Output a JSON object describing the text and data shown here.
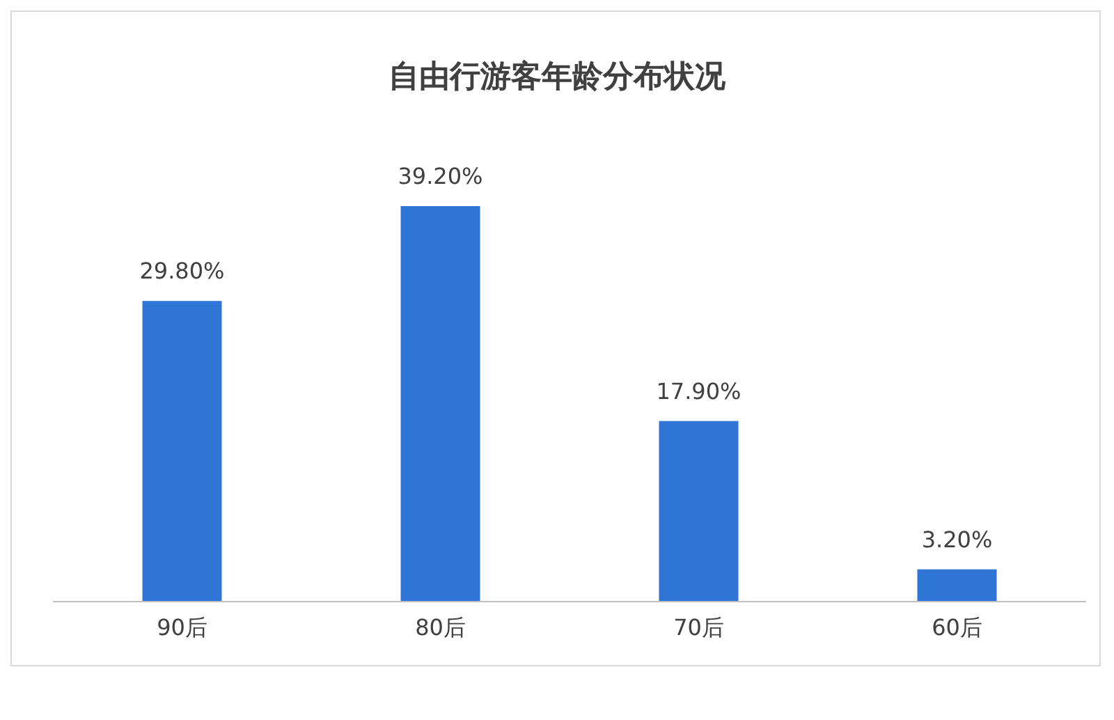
{
  "chart_data": {
    "type": "bar",
    "title": "自由行游客年龄分布状况",
    "categories": [
      "90后",
      "80后",
      "70后",
      "60后"
    ],
    "values": [
      29.8,
      39.2,
      17.9,
      3.2
    ],
    "value_labels": [
      "29.80%",
      "39.20%",
      "17.90%",
      "3.20%"
    ],
    "color": "#2e75d6"
  }
}
